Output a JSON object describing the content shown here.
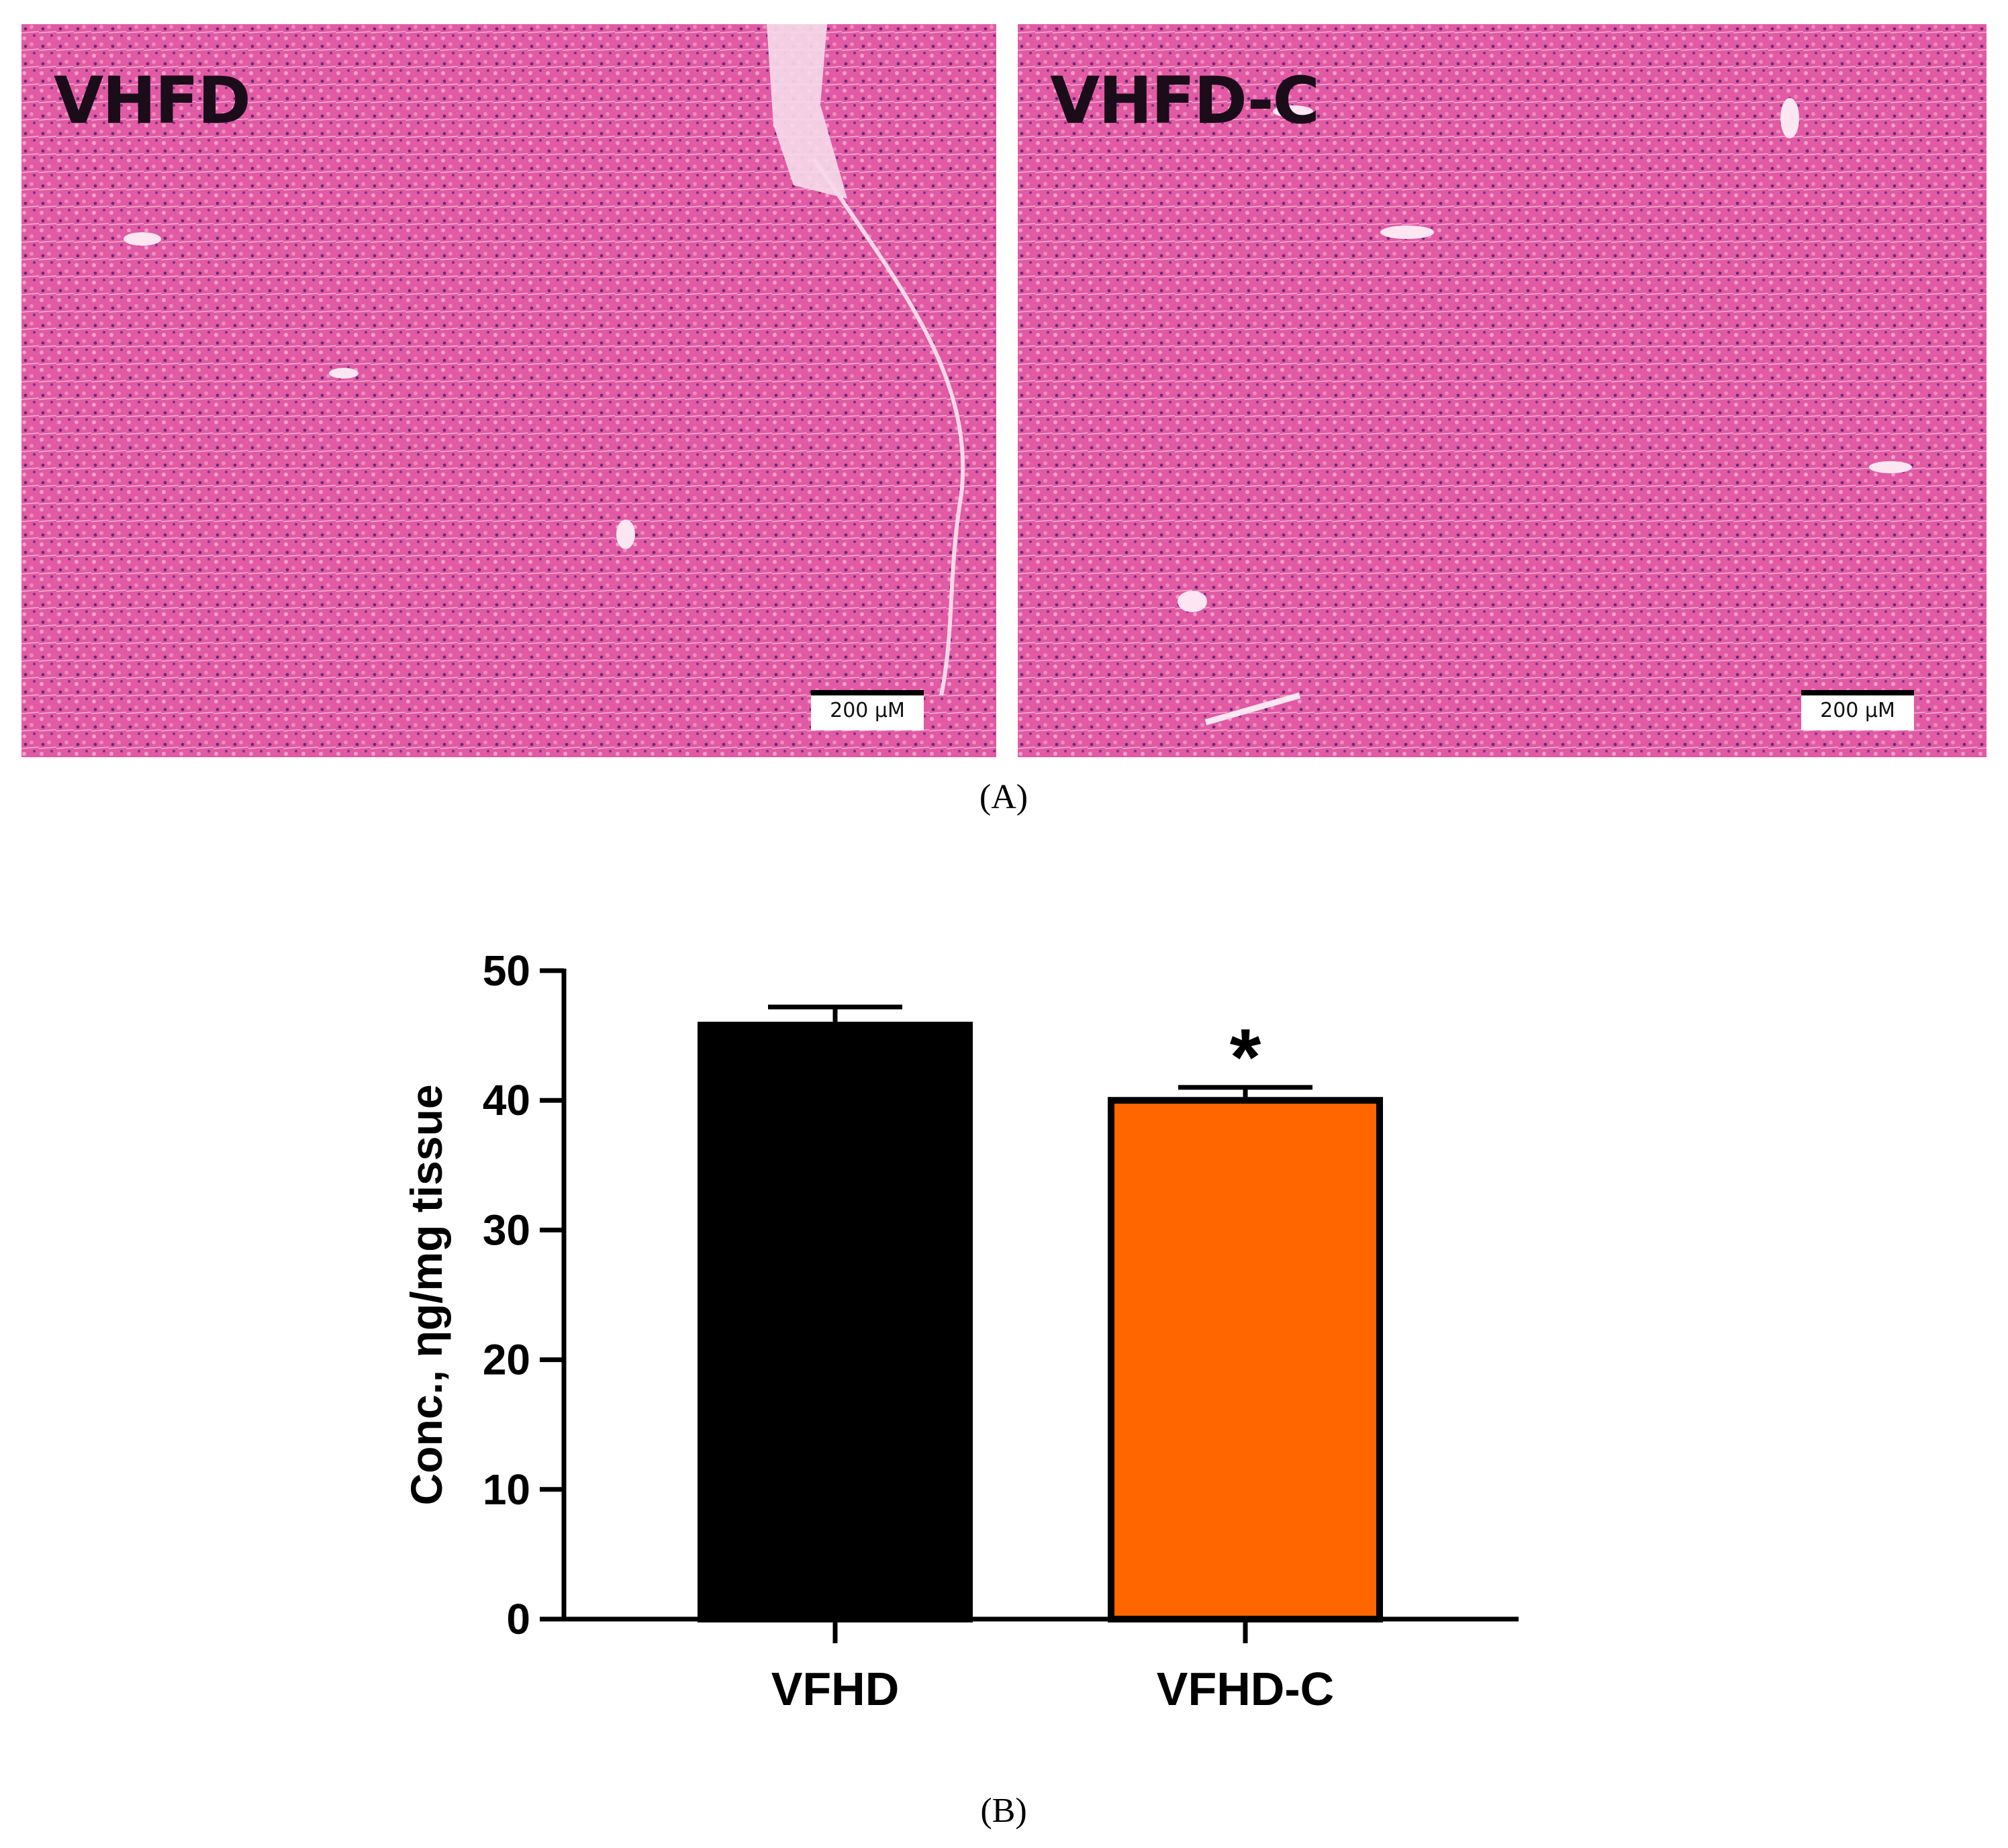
{
  "panel_a": {
    "caption": "(A)",
    "images": [
      {
        "label": "VHFD",
        "scale_bar": "200 µM",
        "stain_color": "#e0559f"
      },
      {
        "label": "VHFD-C",
        "scale_bar": "200 µM",
        "stain_color": "#e0559f"
      }
    ]
  },
  "panel_b": {
    "caption": "(B)"
  },
  "chart_data": {
    "type": "bar",
    "categories": [
      "VFHD",
      "VFHD-C"
    ],
    "values": [
      45.8,
      40.0
    ],
    "error": [
      1.4,
      1.0
    ],
    "colors": [
      "#000000",
      "#ff6600"
    ],
    "significance": [
      "",
      "*"
    ],
    "ylabel": "Conc., ηg/mg tissue",
    "xlabel": "",
    "ylim": [
      0,
      50
    ],
    "yticks": [
      0,
      10,
      20,
      30,
      40,
      50
    ],
    "grid": false,
    "legend": "none"
  }
}
